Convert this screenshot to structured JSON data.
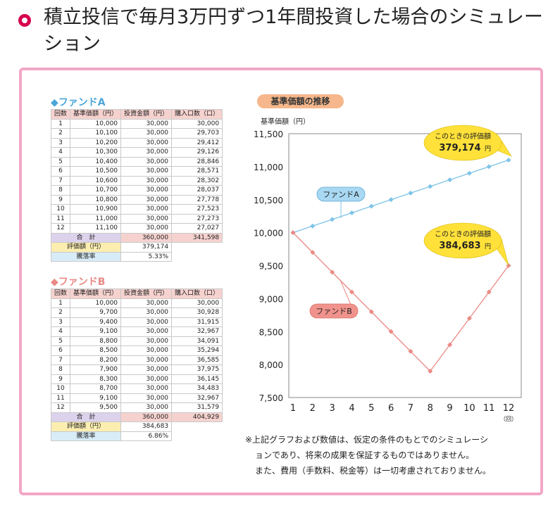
{
  "title": "積立投信で毎月3万円ずつ1年間投資した場合のシミュレーション",
  "fund_a": {
    "heading": "◆ファンドA",
    "headers": [
      "回数",
      "基準価額（円）",
      "投資金額（円）",
      "購入口数（口）"
    ],
    "rows": [
      [
        "1",
        "10,000",
        "30,000",
        "30,000"
      ],
      [
        "2",
        "10,100",
        "30,000",
        "29,703"
      ],
      [
        "3",
        "10,200",
        "30,000",
        "29,412"
      ],
      [
        "4",
        "10,300",
        "30,000",
        "29,126"
      ],
      [
        "5",
        "10,400",
        "30,000",
        "28,846"
      ],
      [
        "6",
        "10,500",
        "30,000",
        "28,571"
      ],
      [
        "7",
        "10,600",
        "30,000",
        "28,302"
      ],
      [
        "8",
        "10,700",
        "30,000",
        "28,037"
      ],
      [
        "9",
        "10,800",
        "30,000",
        "27,778"
      ],
      [
        "10",
        "10,900",
        "30,000",
        "27,523"
      ],
      [
        "11",
        "11,000",
        "30,000",
        "27,273"
      ],
      [
        "12",
        "11,100",
        "30,000",
        "27,027"
      ]
    ],
    "total_label": "合　計",
    "total_invest": "360,000",
    "total_units": "341,598",
    "eval_label": "評価額（円）",
    "eval_value": "379,174",
    "rate_label": "騰落率",
    "rate_value": "5.33%"
  },
  "fund_b": {
    "heading": "◆ファンドB",
    "headers": [
      "回数",
      "基準価額（円）",
      "投資金額（円）",
      "購入口数（口）"
    ],
    "rows": [
      [
        "1",
        "10,000",
        "30,000",
        "30,000"
      ],
      [
        "2",
        "9,700",
        "30,000",
        "30,928"
      ],
      [
        "3",
        "9,400",
        "30,000",
        "31,915"
      ],
      [
        "4",
        "9,100",
        "30,000",
        "32,967"
      ],
      [
        "5",
        "8,800",
        "30,000",
        "34,091"
      ],
      [
        "6",
        "8,500",
        "30,000",
        "35,294"
      ],
      [
        "7",
        "8,200",
        "30,000",
        "36,585"
      ],
      [
        "8",
        "7,900",
        "30,000",
        "37,975"
      ],
      [
        "9",
        "8,300",
        "30,000",
        "36,145"
      ],
      [
        "10",
        "8,700",
        "30,000",
        "34,483"
      ],
      [
        "11",
        "9,100",
        "30,000",
        "32,967"
      ],
      [
        "12",
        "9,500",
        "30,000",
        "31,579"
      ]
    ],
    "total_label": "合　計",
    "total_invest": "360,000",
    "total_units": "404,929",
    "eval_label": "評価額（円）",
    "eval_value": "384,683",
    "rate_label": "騰落率",
    "rate_value": "6.86%"
  },
  "chart_data": {
    "type": "line",
    "title": "基準価額の推移",
    "ylabel": "基準価額（円）",
    "xlabel": "（回）",
    "x": [
      1,
      2,
      3,
      4,
      5,
      6,
      7,
      8,
      9,
      10,
      11,
      12
    ],
    "ylim": [
      7500,
      11500
    ],
    "yticks": [
      7500,
      8000,
      8500,
      9000,
      9500,
      10000,
      10500,
      11000,
      11500
    ],
    "ytick_labels": [
      "7,500",
      "8,000",
      "8,500",
      "9,000",
      "9,500",
      "10,000",
      "10,500",
      "11,000",
      "11,500"
    ],
    "series": [
      {
        "name": "ファンドA",
        "color": "#7ec4e8",
        "label_bg": "#a9d8f2",
        "values": [
          10000,
          10100,
          10200,
          10300,
          10400,
          10500,
          10600,
          10700,
          10800,
          10900,
          11000,
          11100
        ]
      },
      {
        "name": "ファンドB",
        "color": "#ea8a84",
        "label_bg": "#f0938c",
        "values": [
          10000,
          9700,
          9400,
          9100,
          8800,
          8500,
          8200,
          7900,
          8300,
          8700,
          9100,
          9500
        ]
      }
    ],
    "annotations": [
      {
        "series": "ファンドA",
        "text": "このときの評価額",
        "value_text": "379,174",
        "unit": "円"
      },
      {
        "series": "ファンドB",
        "text": "このときの評価額",
        "value_text": "384,683",
        "unit": "円"
      }
    ],
    "grid": false,
    "legend": "inline-labels"
  },
  "note": {
    "line1": "※上記グラフおよび数値は、仮定の条件のもとでのシミュレーシ",
    "line2": "ョンであり、将来の成果を保証するものではありません。",
    "line3": "また、費用（手数料、税金等）は一切考慮されておりません。"
  }
}
